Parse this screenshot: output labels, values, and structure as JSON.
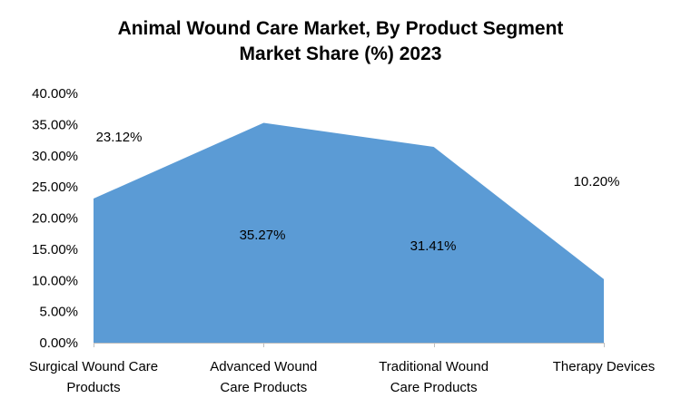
{
  "chart_data": {
    "type": "area",
    "title_line1": "Animal Wound Care Market, By Product Segment",
    "title_line2": "Market Share (%) 2023",
    "categories": [
      [
        "Surgical Wound Care",
        "Products"
      ],
      [
        "Advanced Wound",
        "Care Products"
      ],
      [
        "Traditional Wound",
        "Care Products"
      ],
      [
        "Therapy Devices"
      ]
    ],
    "values": [
      23.12,
      35.27,
      31.41,
      10.2
    ],
    "data_labels": [
      "23.12%",
      "35.27%",
      "31.41%",
      "10.20%"
    ],
    "y_ticks": [
      "0.00%",
      "5.00%",
      "10.00%",
      "15.00%",
      "20.00%",
      "25.00%",
      "30.00%",
      "35.00%",
      "40.00%"
    ],
    "ylim": [
      0,
      40
    ],
    "grid": false,
    "legend": "none",
    "fill_color": "#5B9BD5"
  }
}
